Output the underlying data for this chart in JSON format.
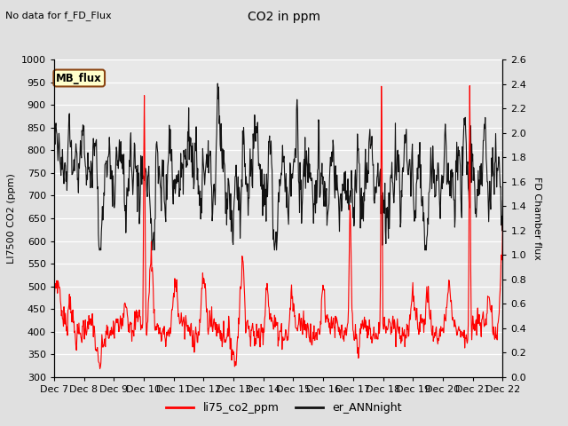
{
  "title": "CO2 in ppm",
  "top_left_text": "No data for f_FD_Flux",
  "ylabel_left": "LI7500 CO2 (ppm)",
  "ylabel_right": "FD Chamber flux",
  "ylim_left": [
    300,
    1000
  ],
  "ylim_right": [
    0.0,
    2.6
  ],
  "background_color": "#e0e0e0",
  "plot_bg_color": "#e8e8e8",
  "legend_labels": [
    "li75_co2_ppm",
    "er_ANNnight"
  ],
  "legend_colors": [
    "#ff0000",
    "#111111"
  ],
  "box_label": "MB_flux",
  "box_facecolor": "#ffffcc",
  "box_edgecolor": "#8b4513",
  "xtick_labels": [
    "Dec 7",
    "Dec 8",
    "Dec 9",
    "Dec 10",
    "Dec 11",
    "Dec 12",
    "Dec 13",
    "Dec 14",
    "Dec 15",
    "Dec 16",
    "Dec 17",
    "Dec 18",
    "Dec 19",
    "Dec 20",
    "Dec 21",
    "Dec 22"
  ],
  "red_line_color": "#ff0000",
  "black_line_color": "#111111",
  "yticks_left": [
    300,
    350,
    400,
    450,
    500,
    550,
    600,
    650,
    700,
    750,
    800,
    850,
    900,
    950,
    1000
  ],
  "yticks_right": [
    0.0,
    0.2,
    0.4,
    0.6,
    0.8,
    1.0,
    1.2,
    1.4,
    1.6,
    1.8,
    2.0,
    2.2,
    2.4,
    2.6
  ],
  "n_points": 900,
  "seed": 7
}
